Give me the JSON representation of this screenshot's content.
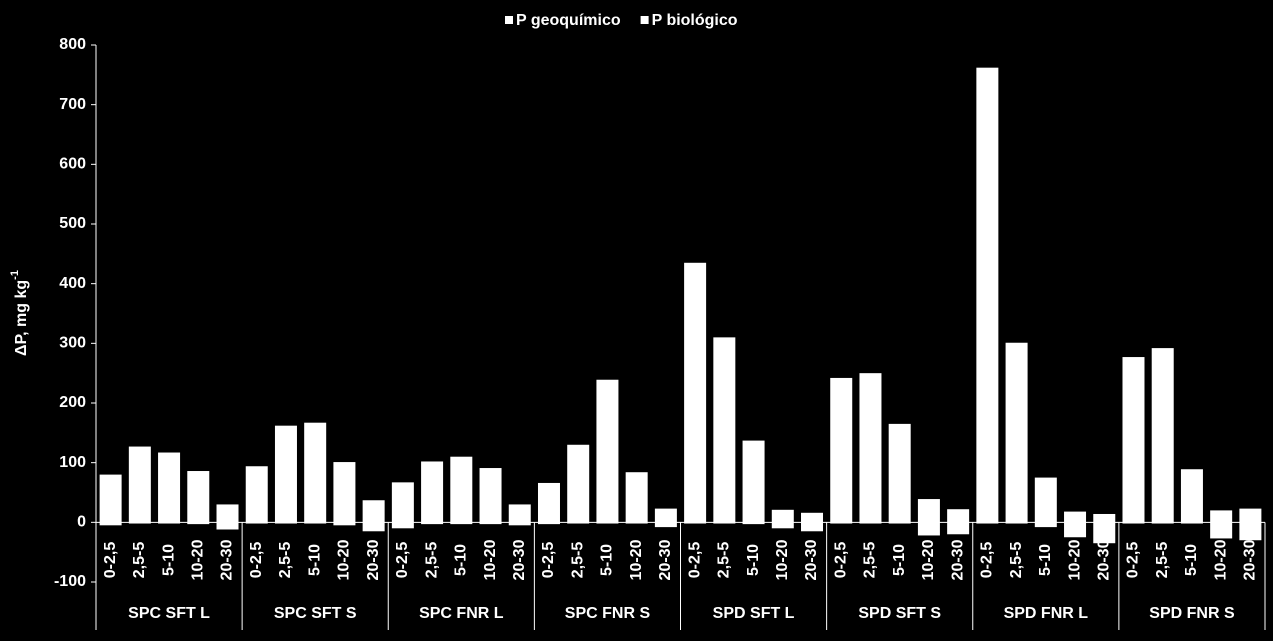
{
  "chart_data": {
    "type": "bar",
    "stacked": true,
    "y_label": "ΔP, mg kg",
    "y_label_sup": "-1",
    "groups": [
      "SPC SFT L",
      "SPC SFT S",
      "SPC FNR L",
      "SPC FNR S",
      "SPD SFT L",
      "SPD SFT S",
      "SPD FNR L",
      "SPD FNR S"
    ],
    "categories": [
      "0-2,5",
      "2,5-5",
      "5-10",
      "10-20",
      "20-30",
      "0-2,5",
      "2,5-5",
      "5-10",
      "10-20",
      "20-30",
      "0-2,5",
      "2,5-5",
      "5-10",
      "10-20",
      "20-30",
      "0-2,5",
      "2,5-5",
      "5-10",
      "10-20",
      "20-30",
      "0-2,5",
      "2,5-5",
      "5-10",
      "10-20",
      "20-30",
      "0-2,5",
      "2,5-5",
      "5-10",
      "10-20",
      "20-30",
      "0-2,5",
      "2,5-5",
      "5-10",
      "10-20",
      "20-30",
      "0-2,5",
      "2,5-5",
      "5-10",
      "10-20",
      "20-30"
    ],
    "series": [
      {
        "name": "P geoquímico",
        "color": "#ffffff",
        "values": [
          80,
          127,
          117,
          86,
          30,
          94,
          162,
          167,
          101,
          37,
          67,
          102,
          110,
          91,
          30,
          66,
          130,
          239,
          84,
          23,
          435,
          310,
          137,
          21,
          16,
          242,
          250,
          165,
          39,
          22,
          762,
          301,
          75,
          18,
          14,
          277,
          292,
          89,
          20,
          23
        ]
      },
      {
        "name": "P biológico",
        "color": "#ffffff",
        "values": [
          -5,
          -2,
          -2,
          -3,
          -12,
          -2,
          -2,
          -2,
          -5,
          -15,
          -10,
          -3,
          -3,
          -3,
          -5,
          -3,
          -2,
          -2,
          -2,
          -8,
          -2,
          -2,
          -3,
          -10,
          -15,
          -2,
          -2,
          -2,
          -22,
          -20,
          -2,
          -2,
          -8,
          -25,
          -35,
          -2,
          -2,
          -2,
          -27,
          -30
        ]
      }
    ],
    "ylim": [
      -100,
      800
    ],
    "yticks": [
      -100,
      0,
      100,
      200,
      300,
      400,
      500,
      600,
      700,
      800
    ],
    "grid": false
  }
}
